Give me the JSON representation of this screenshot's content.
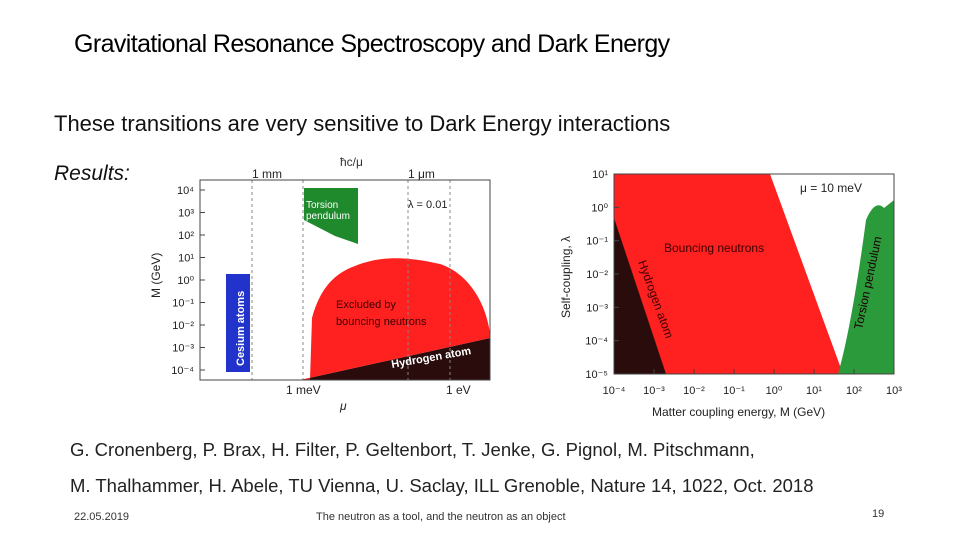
{
  "title": "Gravitational Resonance Spectroscopy and Dark Energy",
  "subtitle": "These transitions are very sensitive to Dark Energy interactions",
  "results_label": "Results:",
  "citation": {
    "line1": "G. Cronenberg, P. Brax, H. Filter, P. Geltenbort, T. Jenke, G. Pignol, M. Pitschmann,",
    "line2": "M. Thalhammer, H. Abele, TU Vienna, U. Saclay, ILL Grenoble, Nature 14, 1022, Oct. 2018"
  },
  "footer": {
    "date": "22.05.2019",
    "center": "The neutron as a tool, and the neutron as an object",
    "page": "19"
  },
  "plot1": {
    "top_axis_label": "ħc/μ",
    "top_ticks": [
      "1 mm",
      "1 μm"
    ],
    "lambda_label": "λ = 0.01",
    "ylabel": "M (GeV)",
    "yticks": [
      "10⁴",
      "10³",
      "10²",
      "10¹",
      "10⁰",
      "10⁻¹",
      "10⁻²",
      "10⁻³",
      "10⁻⁴"
    ],
    "xticks": [
      "1 meV",
      "1 eV"
    ],
    "xlabel": "μ",
    "regions": {
      "cesium": "Cesium atoms",
      "torsion_line1": "Torsion",
      "torsion_line2": "pendulum",
      "excluded_line1": "Excluded by",
      "excluded_line2": "bouncing neutrons",
      "hydrogen": "Hydrogen atom"
    },
    "colors": {
      "cesium": "#2233cc",
      "torsion": "#1e8a2c",
      "neutrons": "#ff2020",
      "hydrogen": "#2a0c0c"
    }
  },
  "plot2": {
    "mu_label": "μ = 10 meV",
    "ylabel": "Self-coupling, λ",
    "yticks": [
      "10¹",
      "10⁰",
      "10⁻¹",
      "10⁻²",
      "10⁻³",
      "10⁻⁴",
      "10⁻⁵"
    ],
    "xticks": [
      "10⁻⁴",
      "10⁻³",
      "10⁻²",
      "10⁻¹",
      "10⁰",
      "10¹",
      "10²",
      "10³"
    ],
    "xlabel": "Matter coupling energy, M (GeV)",
    "regions": {
      "neutrons": "Bouncing neutrons",
      "hydrogen": "Hydrogen atom",
      "torsion": "Torsion pendulum"
    },
    "colors": {
      "neutrons": "#ff2020",
      "hydrogen": "#2a0c0c",
      "torsion": "#2a9a3a"
    }
  }
}
